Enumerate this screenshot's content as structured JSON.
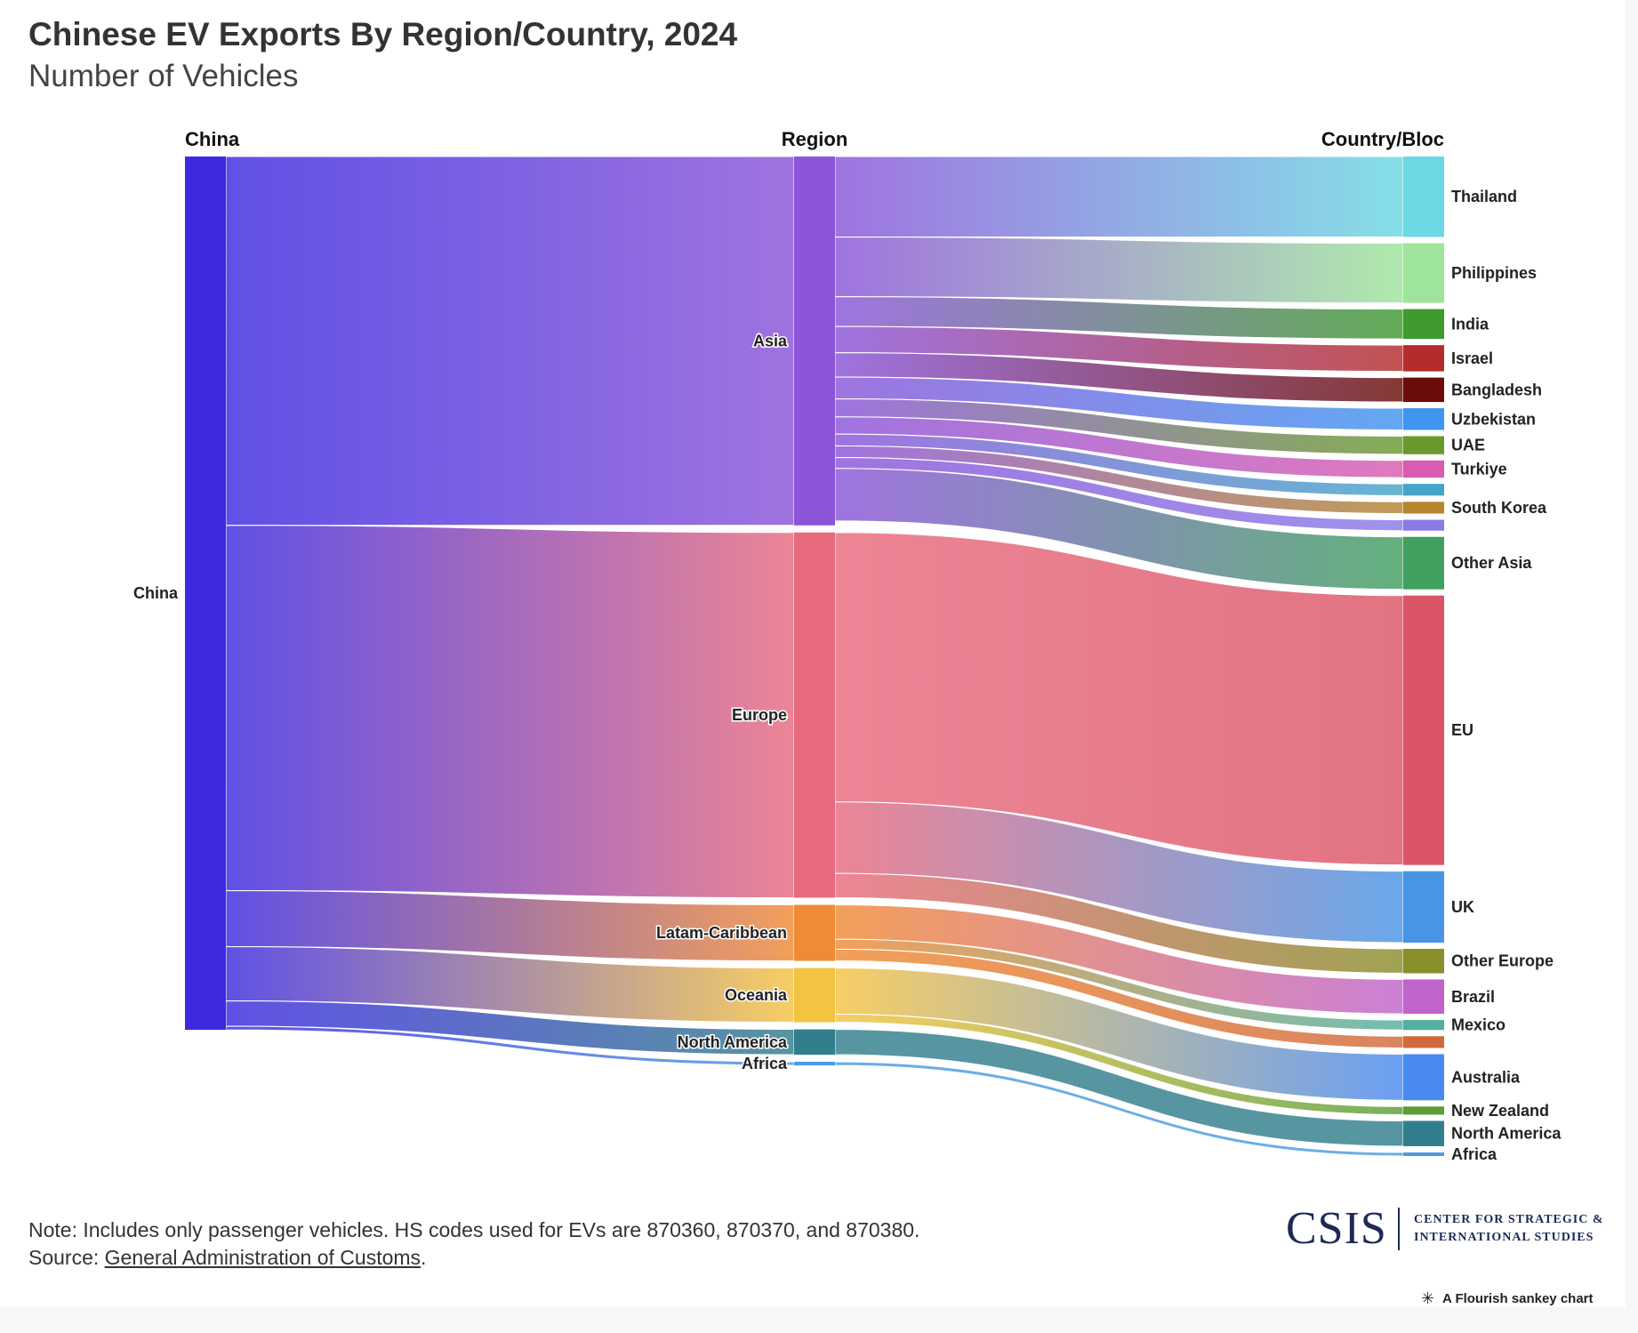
{
  "header": {
    "title": "Chinese EV Exports By Region/Country, 2024",
    "subtitle": "Number of Vehicles"
  },
  "chart_data": {
    "type": "sankey",
    "columns": [
      "China",
      "Region",
      "Country/Bloc"
    ],
    "nodes": [
      {
        "id": "China",
        "label": "China",
        "column": 0,
        "color": "#3d2ae0"
      },
      {
        "id": "Asia",
        "label": "Asia",
        "column": 1,
        "color": "#8a55d9"
      },
      {
        "id": "Europe",
        "label": "Europe",
        "column": 1,
        "color": "#e86a7e"
      },
      {
        "id": "Latam",
        "label": "Latam-Caribbean",
        "column": 1,
        "color": "#f08a35"
      },
      {
        "id": "Oceania",
        "label": "Oceania",
        "column": 1,
        "color": "#f5c342"
      },
      {
        "id": "NorthAmericaR",
        "label": "North America",
        "column": 1,
        "color": "#327e8c"
      },
      {
        "id": "AfricaR",
        "label": "Africa",
        "column": 1,
        "color": "#4a9ce0"
      },
      {
        "id": "Thailand",
        "label": "Thailand",
        "column": 2,
        "color": "#6bd8e3"
      },
      {
        "id": "Philippines",
        "label": "Philippines",
        "column": 2,
        "color": "#9ee59b"
      },
      {
        "id": "India",
        "label": "India",
        "column": 2,
        "color": "#3f9a30"
      },
      {
        "id": "Israel",
        "label": "Israel",
        "column": 2,
        "color": "#b52c2c"
      },
      {
        "id": "Bangladesh",
        "label": "Bangladesh",
        "column": 2,
        "color": "#6a0c08"
      },
      {
        "id": "Uzbekistan",
        "label": "Uzbekistan",
        "column": 2,
        "color": "#3f95f0"
      },
      {
        "id": "UAE",
        "label": "UAE",
        "column": 2,
        "color": "#6a9a2c"
      },
      {
        "id": "Turkiye",
        "label": "Turkiye",
        "column": 2,
        "color": "#d85cb0"
      },
      {
        "id": "AsiaOther1",
        "label": "",
        "column": 2,
        "color": "#45a5c8"
      },
      {
        "id": "SouthKorea",
        "label": "South Korea",
        "column": 2,
        "color": "#b58530"
      },
      {
        "id": "AsiaOther2",
        "label": "",
        "column": 2,
        "color": "#8a7ae8"
      },
      {
        "id": "OtherAsia",
        "label": "Other Asia",
        "column": 2,
        "color": "#40a060"
      },
      {
        "id": "EU",
        "label": "EU",
        "column": 2,
        "color": "#dc5468"
      },
      {
        "id": "UK",
        "label": "UK",
        "column": 2,
        "color": "#4895e6"
      },
      {
        "id": "OtherEurope",
        "label": "Other Europe",
        "column": 2,
        "color": "#8a8e2c"
      },
      {
        "id": "Brazil",
        "label": "Brazil",
        "column": 2,
        "color": "#c064cc"
      },
      {
        "id": "Mexico",
        "label": "Mexico",
        "column": 2,
        "color": "#52b0a0"
      },
      {
        "id": "LatamOther",
        "label": "",
        "column": 2,
        "color": "#d06a3c"
      },
      {
        "id": "Australia",
        "label": "Australia",
        "column": 2,
        "color": "#4a8af0"
      },
      {
        "id": "NewZealand",
        "label": "New Zealand",
        "column": 2,
        "color": "#5a9e3a"
      },
      {
        "id": "NorthAmerica",
        "label": "North America",
        "column": 2,
        "color": "#327e8c"
      },
      {
        "id": "Africa",
        "label": "Africa",
        "column": 2,
        "color": "#4a9ce0"
      }
    ],
    "links": [
      {
        "source": "China",
        "target": "Asia",
        "value": 408000
      },
      {
        "source": "China",
        "target": "Europe",
        "value": 404000
      },
      {
        "source": "China",
        "target": "Latam",
        "value": 62000
      },
      {
        "source": "China",
        "target": "Oceania",
        "value": 60000
      },
      {
        "source": "China",
        "target": "NorthAmericaR",
        "value": 28000
      },
      {
        "source": "China",
        "target": "AfricaR",
        "value": 4000
      },
      {
        "source": "Asia",
        "target": "Thailand",
        "value": 89000
      },
      {
        "source": "Asia",
        "target": "Philippines",
        "value": 66000
      },
      {
        "source": "Asia",
        "target": "India",
        "value": 33000
      },
      {
        "source": "Asia",
        "target": "Israel",
        "value": 29000
      },
      {
        "source": "Asia",
        "target": "Bangladesh",
        "value": 27000
      },
      {
        "source": "Asia",
        "target": "Uzbekistan",
        "value": 24000
      },
      {
        "source": "Asia",
        "target": "UAE",
        "value": 20000
      },
      {
        "source": "Asia",
        "target": "Turkiye",
        "value": 19000
      },
      {
        "source": "Asia",
        "target": "AsiaOther1",
        "value": 13000
      },
      {
        "source": "Asia",
        "target": "SouthKorea",
        "value": 13000
      },
      {
        "source": "Asia",
        "target": "AsiaOther2",
        "value": 12000
      },
      {
        "source": "Asia",
        "target": "OtherAsia",
        "value": 58000
      },
      {
        "source": "Europe",
        "target": "EU",
        "value": 298000
      },
      {
        "source": "Europe",
        "target": "UK",
        "value": 79000
      },
      {
        "source": "Europe",
        "target": "OtherEurope",
        "value": 27000
      },
      {
        "source": "Latam",
        "target": "Brazil",
        "value": 38000
      },
      {
        "source": "Latam",
        "target": "Mexico",
        "value": 11000
      },
      {
        "source": "Latam",
        "target": "LatamOther",
        "value": 13000
      },
      {
        "source": "Oceania",
        "target": "Australia",
        "value": 51000
      },
      {
        "source": "Oceania",
        "target": "NewZealand",
        "value": 9000
      },
      {
        "source": "NorthAmericaR",
        "target": "NorthAmerica",
        "value": 28000
      },
      {
        "source": "AfricaR",
        "target": "Africa",
        "value": 4000
      }
    ]
  },
  "footer": {
    "note": "Note: Includes only passenger vehicles. HS codes used for EVs are 870360, 870370, and 870380.",
    "source_prefix": "Source: ",
    "source_link": "General Administration of Customs",
    "source_suffix": "."
  },
  "branding": {
    "logo_word": "CSIS",
    "logo_line1": "CENTER FOR STRATEGIC &",
    "logo_line2": "INTERNATIONAL STUDIES",
    "credit": "A Flourish sankey chart",
    "credit_icon": "flourish-star-icon"
  }
}
